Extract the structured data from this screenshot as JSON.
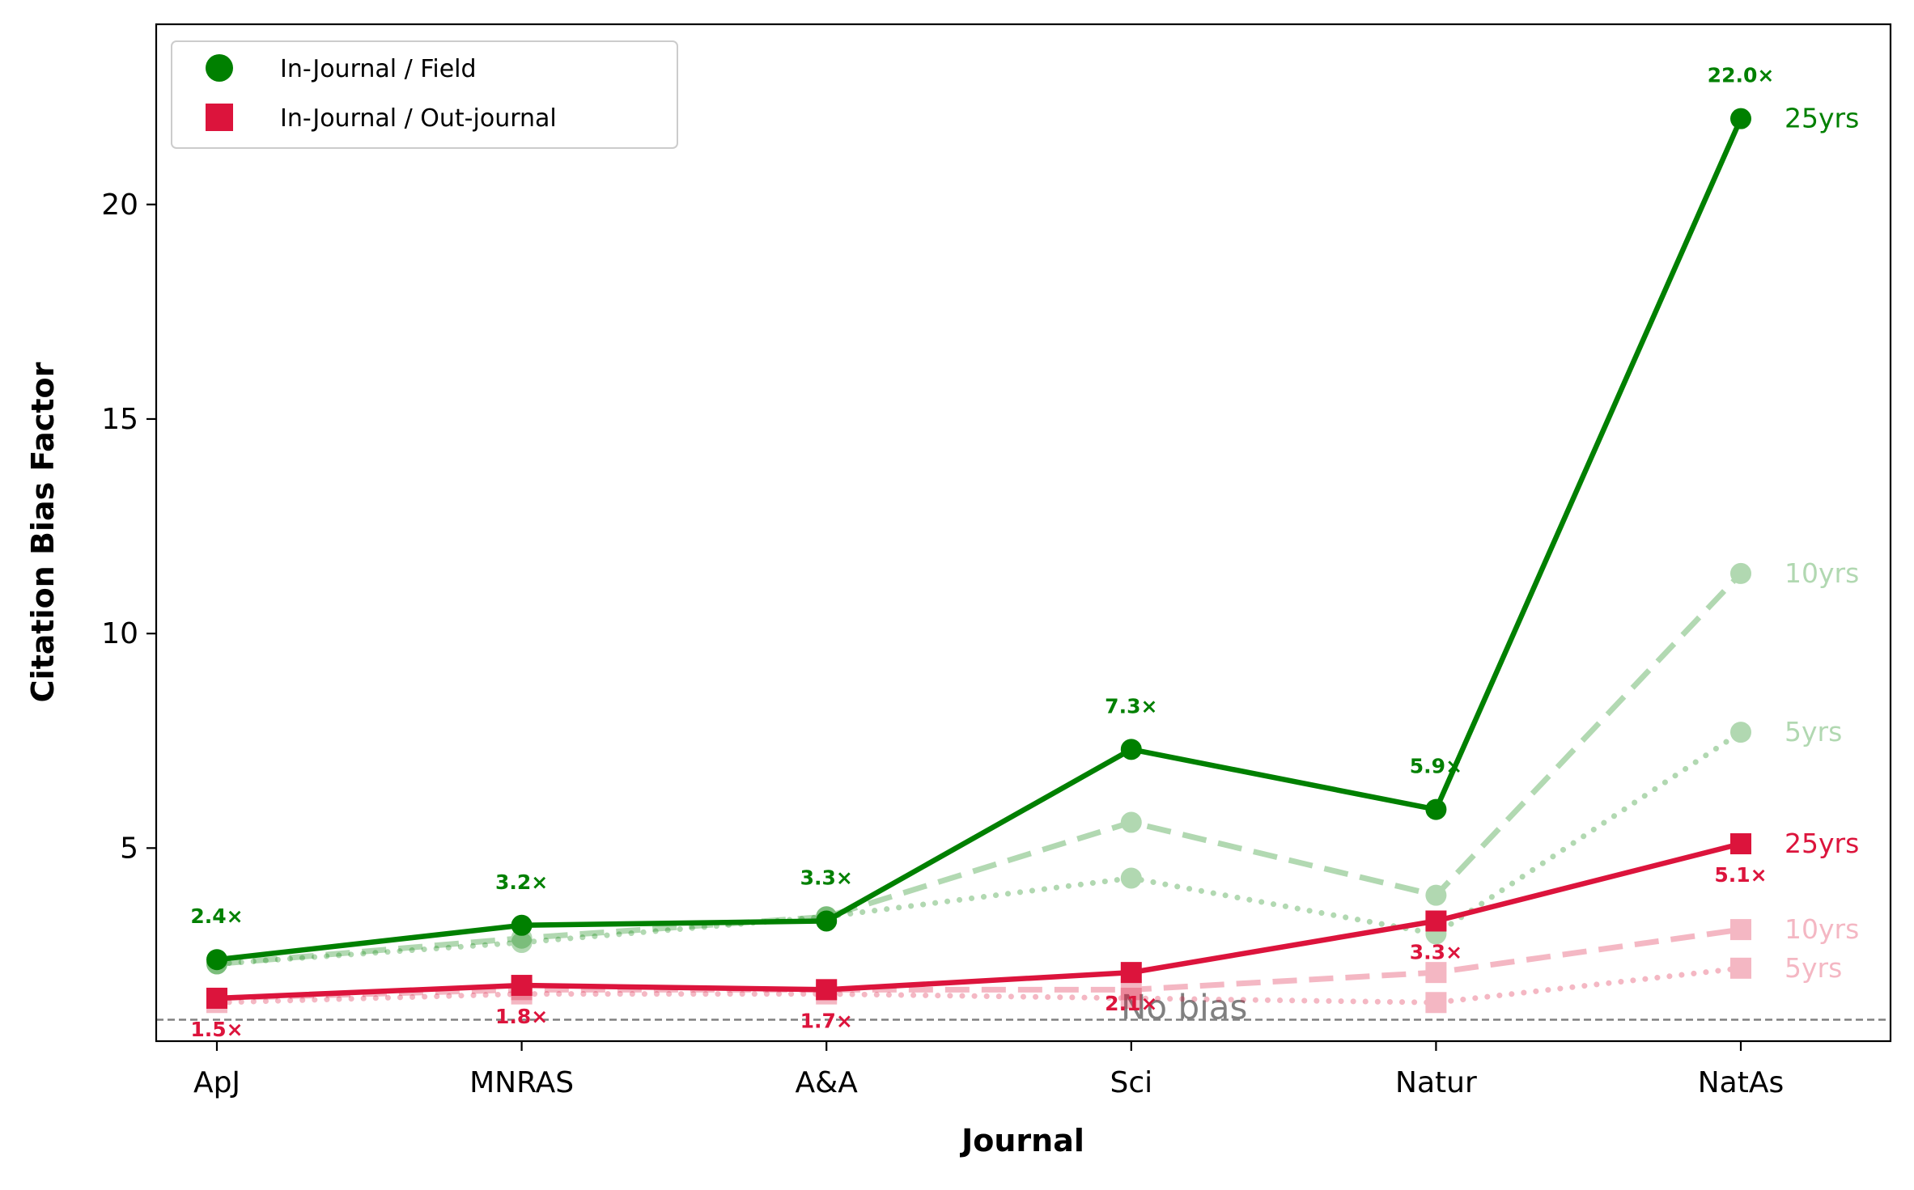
{
  "chart_data": {
    "type": "line",
    "xlabel": "Journal",
    "ylabel": "Citation Bias Factor",
    "categories": [
      "ApJ",
      "MNRAS",
      "A&A",
      "Sci",
      "Natur",
      "NatAs"
    ],
    "ylim": [
      0.5,
      24.2
    ],
    "yticks": [
      5,
      10,
      15,
      20
    ],
    "ytick_labels": [
      "5",
      "10",
      "15",
      "20"
    ],
    "grid": false,
    "legend": {
      "placement": "top-left",
      "entries": [
        {
          "label": "In-Journal / Field",
          "color": "#008000",
          "marker": "circle"
        },
        {
          "label": "In-Journal / Out-journal",
          "color": "#DC143C",
          "marker": "square"
        }
      ]
    },
    "reference_line": {
      "y": 1.0,
      "label": "No bias",
      "color": "#808080"
    },
    "series": [
      {
        "group": "In-Journal / Field",
        "window": "25yrs",
        "color": "#008000",
        "marker": "circle",
        "style": "solid",
        "values": [
          2.4,
          3.2,
          3.3,
          7.3,
          5.9,
          22.0
        ],
        "labels": [
          "2.4×",
          "3.2×",
          "3.3×",
          "7.3×",
          "5.9×",
          "22.0×"
        ]
      },
      {
        "group": "In-Journal / Field",
        "window": "10yrs",
        "color": "#008000",
        "marker": "circle",
        "style": "dashed",
        "values": [
          2.3,
          2.9,
          3.4,
          5.6,
          3.9,
          11.4
        ]
      },
      {
        "group": "In-Journal / Field",
        "window": "5yrs",
        "color": "#008000",
        "marker": "circle",
        "style": "dotted",
        "values": [
          2.3,
          2.8,
          3.4,
          4.3,
          3.0,
          7.7
        ]
      },
      {
        "group": "In-Journal / Out-journal",
        "window": "25yrs",
        "color": "#DC143C",
        "marker": "square",
        "style": "solid",
        "values": [
          1.5,
          1.8,
          1.7,
          2.1,
          3.3,
          5.1
        ],
        "labels": [
          "1.5×",
          "1.8×",
          "1.7×",
          "2.1×",
          "3.3×",
          "5.1×"
        ]
      },
      {
        "group": "In-Journal / Out-journal",
        "window": "10yrs",
        "color": "#DC143C",
        "marker": "square",
        "style": "dashed",
        "values": [
          1.5,
          1.7,
          1.7,
          1.7,
          2.1,
          3.1
        ]
      },
      {
        "group": "In-Journal / Out-journal",
        "window": "5yrs",
        "color": "#DC143C",
        "marker": "square",
        "style": "dotted",
        "values": [
          1.4,
          1.6,
          1.6,
          1.5,
          1.4,
          2.2
        ]
      }
    ],
    "end_labels": [
      {
        "text": "25yrs",
        "color": "#008000",
        "y": 22.0,
        "opacity": 1
      },
      {
        "text": "10yrs",
        "color": "#008000",
        "y": 11.4,
        "opacity": 0.3
      },
      {
        "text": "5yrs",
        "color": "#008000",
        "y": 7.7,
        "opacity": 0.3
      },
      {
        "text": "25yrs",
        "color": "#DC143C",
        "y": 5.1,
        "opacity": 1
      },
      {
        "text": "10yrs",
        "color": "#DC143C",
        "y": 3.1,
        "opacity": 0.3
      },
      {
        "text": "5yrs",
        "color": "#DC143C",
        "y": 2.2,
        "opacity": 0.3
      }
    ]
  }
}
